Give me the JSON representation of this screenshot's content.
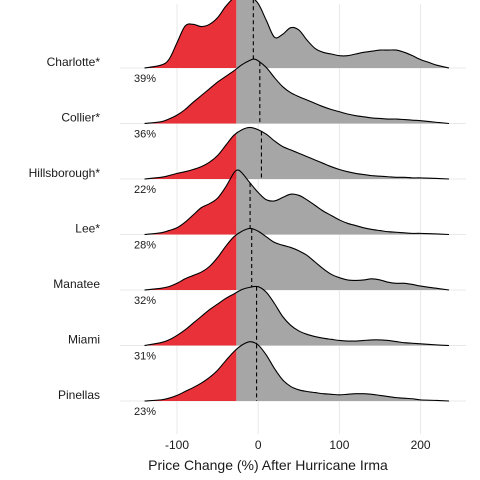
{
  "chart_data": {
    "type": "ridgeline",
    "title": "",
    "xlabel": "Price Change (%) After Hurricane Irma",
    "ylabel": "",
    "xlim": [
      -140,
      235
    ],
    "x_ticks": [
      -100,
      0,
      100,
      200
    ],
    "x_tick_labels": [
      "-100",
      "0",
      "100",
      "200"
    ],
    "threshold_x": -27,
    "grid": "vertical",
    "colors": {
      "below_threshold": "#e8262e",
      "above_threshold": "#a6a6a6",
      "outline": "#000000",
      "grid": "#e8e8e8"
    },
    "series": [
      {
        "label": "Charlotte*",
        "percent_label": "39%",
        "median_x": -6,
        "points": [
          [
            -140,
            0
          ],
          [
            -120,
            0.05
          ],
          [
            -110,
            0.15
          ],
          [
            -100,
            0.45
          ],
          [
            -90,
            0.75
          ],
          [
            -80,
            0.78
          ],
          [
            -70,
            0.74
          ],
          [
            -60,
            0.78
          ],
          [
            -50,
            0.9
          ],
          [
            -40,
            1.1
          ],
          [
            -30,
            1.25
          ],
          [
            -20,
            1.3
          ],
          [
            -10,
            1.28
          ],
          [
            0,
            1.15
          ],
          [
            10,
            0.85
          ],
          [
            20,
            0.55
          ],
          [
            30,
            0.6
          ],
          [
            40,
            0.72
          ],
          [
            50,
            0.68
          ],
          [
            60,
            0.5
          ],
          [
            70,
            0.35
          ],
          [
            80,
            0.28
          ],
          [
            90,
            0.25
          ],
          [
            100,
            0.22
          ],
          [
            110,
            0.22
          ],
          [
            120,
            0.25
          ],
          [
            130,
            0.28
          ],
          [
            140,
            0.3
          ],
          [
            150,
            0.32
          ],
          [
            160,
            0.32
          ],
          [
            170,
            0.32
          ],
          [
            180,
            0.28
          ],
          [
            190,
            0.22
          ],
          [
            200,
            0.15
          ],
          [
            210,
            0.1
          ],
          [
            220,
            0.05
          ],
          [
            235,
            0
          ]
        ]
      },
      {
        "label": "Collier*",
        "percent_label": "36%",
        "median_x": 2,
        "points": [
          [
            -140,
            0
          ],
          [
            -120,
            0.03
          ],
          [
            -110,
            0.08
          ],
          [
            -100,
            0.15
          ],
          [
            -90,
            0.25
          ],
          [
            -80,
            0.38
          ],
          [
            -70,
            0.5
          ],
          [
            -60,
            0.62
          ],
          [
            -50,
            0.74
          ],
          [
            -40,
            0.84
          ],
          [
            -30,
            0.94
          ],
          [
            -20,
            1.05
          ],
          [
            -10,
            1.13
          ],
          [
            -5,
            1.15
          ],
          [
            0,
            1.12
          ],
          [
            10,
            1.0
          ],
          [
            20,
            0.82
          ],
          [
            30,
            0.66
          ],
          [
            40,
            0.55
          ],
          [
            50,
            0.48
          ],
          [
            60,
            0.42
          ],
          [
            70,
            0.36
          ],
          [
            80,
            0.3
          ],
          [
            90,
            0.25
          ],
          [
            100,
            0.21
          ],
          [
            110,
            0.17
          ],
          [
            120,
            0.14
          ],
          [
            130,
            0.12
          ],
          [
            140,
            0.1
          ],
          [
            150,
            0.09
          ],
          [
            160,
            0.08
          ],
          [
            170,
            0.08
          ],
          [
            180,
            0.07
          ],
          [
            190,
            0.06
          ],
          [
            200,
            0.05
          ],
          [
            220,
            0.02
          ],
          [
            235,
            0
          ]
        ]
      },
      {
        "label": "Hillsborough*",
        "percent_label": "22%",
        "median_x": 4,
        "points": [
          [
            -140,
            0
          ],
          [
            -120,
            0.03
          ],
          [
            -110,
            0.06
          ],
          [
            -100,
            0.1
          ],
          [
            -90,
            0.13
          ],
          [
            -80,
            0.17
          ],
          [
            -70,
            0.22
          ],
          [
            -60,
            0.3
          ],
          [
            -50,
            0.42
          ],
          [
            -40,
            0.6
          ],
          [
            -30,
            0.78
          ],
          [
            -20,
            0.88
          ],
          [
            -10,
            0.92
          ],
          [
            0,
            0.88
          ],
          [
            10,
            0.8
          ],
          [
            20,
            0.68
          ],
          [
            30,
            0.58
          ],
          [
            40,
            0.52
          ],
          [
            50,
            0.46
          ],
          [
            60,
            0.4
          ],
          [
            70,
            0.34
          ],
          [
            80,
            0.28
          ],
          [
            90,
            0.22
          ],
          [
            100,
            0.17
          ],
          [
            110,
            0.13
          ],
          [
            120,
            0.1
          ],
          [
            130,
            0.08
          ],
          [
            140,
            0.06
          ],
          [
            150,
            0.05
          ],
          [
            160,
            0.04
          ],
          [
            170,
            0.03
          ],
          [
            180,
            0.03
          ],
          [
            190,
            0.02
          ],
          [
            200,
            0.02
          ],
          [
            220,
            0.01
          ],
          [
            235,
            0
          ]
        ]
      },
      {
        "label": "Lee*",
        "percent_label": "28%",
        "median_x": -10,
        "points": [
          [
            -140,
            0
          ],
          [
            -120,
            0.03
          ],
          [
            -110,
            0.07
          ],
          [
            -100,
            0.12
          ],
          [
            -90,
            0.22
          ],
          [
            -80,
            0.35
          ],
          [
            -70,
            0.48
          ],
          [
            -60,
            0.55
          ],
          [
            -50,
            0.65
          ],
          [
            -40,
            0.85
          ],
          [
            -30,
            1.1
          ],
          [
            -25,
            1.15
          ],
          [
            -20,
            1.1
          ],
          [
            -10,
            0.92
          ],
          [
            0,
            0.75
          ],
          [
            10,
            0.62
          ],
          [
            20,
            0.6
          ],
          [
            30,
            0.66
          ],
          [
            40,
            0.72
          ],
          [
            50,
            0.7
          ],
          [
            60,
            0.62
          ],
          [
            70,
            0.52
          ],
          [
            80,
            0.42
          ],
          [
            90,
            0.34
          ],
          [
            100,
            0.26
          ],
          [
            110,
            0.2
          ],
          [
            120,
            0.16
          ],
          [
            130,
            0.12
          ],
          [
            140,
            0.09
          ],
          [
            150,
            0.07
          ],
          [
            160,
            0.05
          ],
          [
            170,
            0.04
          ],
          [
            180,
            0.03
          ],
          [
            190,
            0.02
          ],
          [
            200,
            0.02
          ],
          [
            220,
            0.01
          ],
          [
            235,
            0
          ]
        ]
      },
      {
        "label": "Manatee",
        "percent_label": "32%",
        "median_x": -8,
        "points": [
          [
            -140,
            0
          ],
          [
            -120,
            0.03
          ],
          [
            -110,
            0.06
          ],
          [
            -100,
            0.12
          ],
          [
            -90,
            0.2
          ],
          [
            -80,
            0.26
          ],
          [
            -70,
            0.32
          ],
          [
            -60,
            0.42
          ],
          [
            -50,
            0.58
          ],
          [
            -40,
            0.78
          ],
          [
            -30,
            0.95
          ],
          [
            -20,
            1.05
          ],
          [
            -10,
            1.1
          ],
          [
            0,
            1.05
          ],
          [
            10,
            0.95
          ],
          [
            20,
            0.85
          ],
          [
            30,
            0.8
          ],
          [
            40,
            0.76
          ],
          [
            50,
            0.7
          ],
          [
            60,
            0.62
          ],
          [
            70,
            0.5
          ],
          [
            80,
            0.38
          ],
          [
            90,
            0.28
          ],
          [
            100,
            0.22
          ],
          [
            110,
            0.18
          ],
          [
            120,
            0.17
          ],
          [
            130,
            0.18
          ],
          [
            140,
            0.2
          ],
          [
            150,
            0.18
          ],
          [
            160,
            0.14
          ],
          [
            170,
            0.12
          ],
          [
            180,
            0.12
          ],
          [
            190,
            0.1
          ],
          [
            200,
            0.07
          ],
          [
            220,
            0.03
          ],
          [
            235,
            0
          ]
        ]
      },
      {
        "label": "Miami",
        "percent_label": "31%",
        "median_x": -2,
        "points": [
          [
            -140,
            0
          ],
          [
            -120,
            0.05
          ],
          [
            -110,
            0.1
          ],
          [
            -100,
            0.18
          ],
          [
            -90,
            0.28
          ],
          [
            -80,
            0.4
          ],
          [
            -70,
            0.52
          ],
          [
            -60,
            0.64
          ],
          [
            -50,
            0.74
          ],
          [
            -40,
            0.84
          ],
          [
            -30,
            0.92
          ],
          [
            -20,
            1.0
          ],
          [
            -10,
            1.04
          ],
          [
            0,
            1.05
          ],
          [
            10,
            0.95
          ],
          [
            20,
            0.75
          ],
          [
            30,
            0.52
          ],
          [
            40,
            0.36
          ],
          [
            50,
            0.26
          ],
          [
            60,
            0.2
          ],
          [
            70,
            0.16
          ],
          [
            80,
            0.13
          ],
          [
            90,
            0.11
          ],
          [
            100,
            0.09
          ],
          [
            110,
            0.08
          ],
          [
            120,
            0.08
          ],
          [
            130,
            0.09
          ],
          [
            140,
            0.1
          ],
          [
            150,
            0.1
          ],
          [
            160,
            0.09
          ],
          [
            170,
            0.07
          ],
          [
            180,
            0.05
          ],
          [
            190,
            0.04
          ],
          [
            200,
            0.03
          ],
          [
            220,
            0.01
          ],
          [
            235,
            0
          ]
        ]
      },
      {
        "label": "Pinellas",
        "percent_label": "23%",
        "median_x": -2,
        "points": [
          [
            -140,
            0
          ],
          [
            -120,
            0.02
          ],
          [
            -110,
            0.05
          ],
          [
            -100,
            0.1
          ],
          [
            -90,
            0.17
          ],
          [
            -80,
            0.24
          ],
          [
            -70,
            0.32
          ],
          [
            -60,
            0.42
          ],
          [
            -50,
            0.55
          ],
          [
            -40,
            0.72
          ],
          [
            -30,
            0.88
          ],
          [
            -20,
            1.0
          ],
          [
            -10,
            1.06
          ],
          [
            0,
            1.0
          ],
          [
            10,
            0.82
          ],
          [
            20,
            0.58
          ],
          [
            30,
            0.38
          ],
          [
            40,
            0.26
          ],
          [
            50,
            0.2
          ],
          [
            60,
            0.17
          ],
          [
            70,
            0.15
          ],
          [
            80,
            0.13
          ],
          [
            90,
            0.12
          ],
          [
            100,
            0.11
          ],
          [
            110,
            0.12
          ],
          [
            120,
            0.13
          ],
          [
            130,
            0.13
          ],
          [
            140,
            0.12
          ],
          [
            150,
            0.1
          ],
          [
            160,
            0.08
          ],
          [
            170,
            0.06
          ],
          [
            180,
            0.05
          ],
          [
            190,
            0.04
          ],
          [
            200,
            0.02
          ],
          [
            220,
            0.01
          ],
          [
            235,
            0
          ]
        ]
      }
    ]
  }
}
